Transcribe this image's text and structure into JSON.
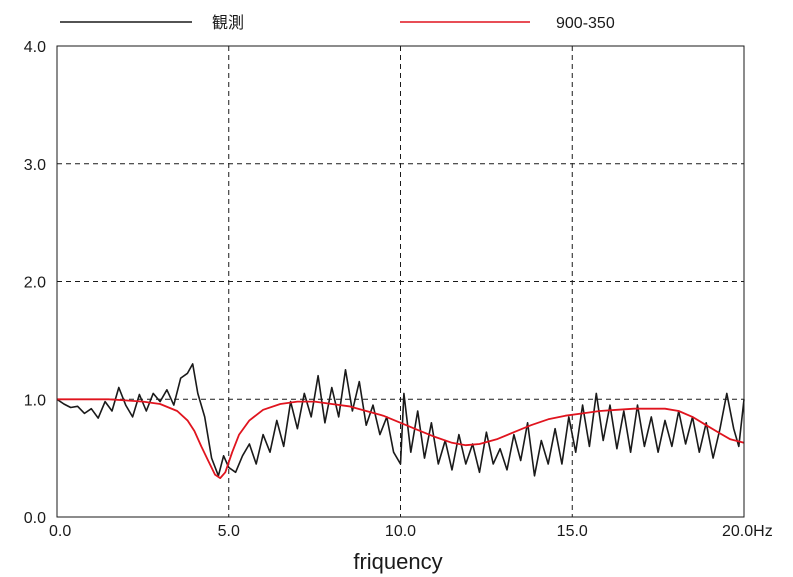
{
  "chart_data": {
    "type": "line",
    "xlabel": "friquency",
    "ylabel": "",
    "xlim": [
      0,
      20
    ],
    "ylim": [
      0,
      4
    ],
    "x_ticks": [
      "0.0",
      "5.0",
      "10.0",
      "15.0",
      "20.0Hz"
    ],
    "y_ticks": [
      "0.0",
      "1.0",
      "2.0",
      "3.0",
      "4.0"
    ],
    "grid": true,
    "legend_position": "top",
    "series": [
      {
        "name": "観測",
        "color": "#1a1a1a",
        "points": [
          [
            0.0,
            1.0
          ],
          [
            0.2,
            0.96
          ],
          [
            0.4,
            0.93
          ],
          [
            0.6,
            0.94
          ],
          [
            0.8,
            0.88
          ],
          [
            1.0,
            0.92
          ],
          [
            1.2,
            0.84
          ],
          [
            1.4,
            0.98
          ],
          [
            1.6,
            0.9
          ],
          [
            1.8,
            1.1
          ],
          [
            2.0,
            0.95
          ],
          [
            2.2,
            0.85
          ],
          [
            2.4,
            1.04
          ],
          [
            2.6,
            0.9
          ],
          [
            2.8,
            1.05
          ],
          [
            3.0,
            0.98
          ],
          [
            3.2,
            1.08
          ],
          [
            3.4,
            0.95
          ],
          [
            3.6,
            1.18
          ],
          [
            3.8,
            1.22
          ],
          [
            3.95,
            1.3
          ],
          [
            4.1,
            1.05
          ],
          [
            4.3,
            0.85
          ],
          [
            4.5,
            0.5
          ],
          [
            4.7,
            0.35
          ],
          [
            4.85,
            0.52
          ],
          [
            5.0,
            0.42
          ],
          [
            5.2,
            0.38
          ],
          [
            5.4,
            0.52
          ],
          [
            5.6,
            0.62
          ],
          [
            5.8,
            0.45
          ],
          [
            6.0,
            0.7
          ],
          [
            6.2,
            0.55
          ],
          [
            6.4,
            0.82
          ],
          [
            6.6,
            0.6
          ],
          [
            6.8,
            0.98
          ],
          [
            7.0,
            0.75
          ],
          [
            7.2,
            1.05
          ],
          [
            7.4,
            0.85
          ],
          [
            7.6,
            1.2
          ],
          [
            7.8,
            0.8
          ],
          [
            8.0,
            1.1
          ],
          [
            8.2,
            0.85
          ],
          [
            8.4,
            1.25
          ],
          [
            8.6,
            0.9
          ],
          [
            8.8,
            1.15
          ],
          [
            9.0,
            0.78
          ],
          [
            9.2,
            0.95
          ],
          [
            9.4,
            0.7
          ],
          [
            9.6,
            0.85
          ],
          [
            9.8,
            0.55
          ],
          [
            10.0,
            0.45
          ],
          [
            10.1,
            1.05
          ],
          [
            10.3,
            0.55
          ],
          [
            10.5,
            0.9
          ],
          [
            10.7,
            0.5
          ],
          [
            10.9,
            0.8
          ],
          [
            11.1,
            0.45
          ],
          [
            11.3,
            0.65
          ],
          [
            11.5,
            0.4
          ],
          [
            11.7,
            0.7
          ],
          [
            11.9,
            0.45
          ],
          [
            12.1,
            0.62
          ],
          [
            12.3,
            0.38
          ],
          [
            12.5,
            0.72
          ],
          [
            12.7,
            0.45
          ],
          [
            12.9,
            0.58
          ],
          [
            13.1,
            0.4
          ],
          [
            13.3,
            0.7
          ],
          [
            13.5,
            0.48
          ],
          [
            13.7,
            0.8
          ],
          [
            13.9,
            0.35
          ],
          [
            14.1,
            0.65
          ],
          [
            14.3,
            0.45
          ],
          [
            14.5,
            0.75
          ],
          [
            14.7,
            0.45
          ],
          [
            14.9,
            0.85
          ],
          [
            15.1,
            0.55
          ],
          [
            15.3,
            0.95
          ],
          [
            15.5,
            0.6
          ],
          [
            15.7,
            1.05
          ],
          [
            15.9,
            0.65
          ],
          [
            16.1,
            0.95
          ],
          [
            16.3,
            0.58
          ],
          [
            16.5,
            0.9
          ],
          [
            16.7,
            0.55
          ],
          [
            16.9,
            0.95
          ],
          [
            17.1,
            0.6
          ],
          [
            17.3,
            0.85
          ],
          [
            17.5,
            0.55
          ],
          [
            17.7,
            0.82
          ],
          [
            17.9,
            0.6
          ],
          [
            18.1,
            0.9
          ],
          [
            18.3,
            0.62
          ],
          [
            18.5,
            0.85
          ],
          [
            18.7,
            0.55
          ],
          [
            18.9,
            0.8
          ],
          [
            19.1,
            0.5
          ],
          [
            19.3,
            0.75
          ],
          [
            19.5,
            1.05
          ],
          [
            19.7,
            0.75
          ],
          [
            19.85,
            0.6
          ],
          [
            20.0,
            1.0
          ]
        ]
      },
      {
        "name": "900-350",
        "color": "#e0141e",
        "points": [
          [
            0.0,
            1.0
          ],
          [
            0.5,
            1.0
          ],
          [
            1.0,
            1.0
          ],
          [
            1.5,
            1.0
          ],
          [
            2.0,
            0.99
          ],
          [
            2.5,
            0.98
          ],
          [
            3.0,
            0.96
          ],
          [
            3.5,
            0.9
          ],
          [
            3.8,
            0.82
          ],
          [
            4.0,
            0.73
          ],
          [
            4.2,
            0.6
          ],
          [
            4.4,
            0.48
          ],
          [
            4.6,
            0.36
          ],
          [
            4.75,
            0.33
          ],
          [
            4.9,
            0.38
          ],
          [
            5.1,
            0.55
          ],
          [
            5.3,
            0.7
          ],
          [
            5.6,
            0.82
          ],
          [
            6.0,
            0.91
          ],
          [
            6.5,
            0.96
          ],
          [
            7.0,
            0.98
          ],
          [
            7.5,
            0.98
          ],
          [
            8.0,
            0.96
          ],
          [
            8.5,
            0.94
          ],
          [
            9.0,
            0.9
          ],
          [
            9.5,
            0.86
          ],
          [
            10.0,
            0.8
          ],
          [
            10.5,
            0.74
          ],
          [
            11.0,
            0.68
          ],
          [
            11.5,
            0.63
          ],
          [
            11.9,
            0.61
          ],
          [
            12.3,
            0.62
          ],
          [
            12.8,
            0.66
          ],
          [
            13.3,
            0.72
          ],
          [
            13.8,
            0.78
          ],
          [
            14.3,
            0.83
          ],
          [
            14.8,
            0.86
          ],
          [
            15.3,
            0.88
          ],
          [
            15.8,
            0.9
          ],
          [
            16.3,
            0.91
          ],
          [
            16.8,
            0.92
          ],
          [
            17.3,
            0.92
          ],
          [
            17.7,
            0.92
          ],
          [
            18.1,
            0.9
          ],
          [
            18.5,
            0.85
          ],
          [
            18.9,
            0.78
          ],
          [
            19.3,
            0.71
          ],
          [
            19.6,
            0.66
          ],
          [
            20.0,
            0.63
          ]
        ]
      }
    ]
  }
}
